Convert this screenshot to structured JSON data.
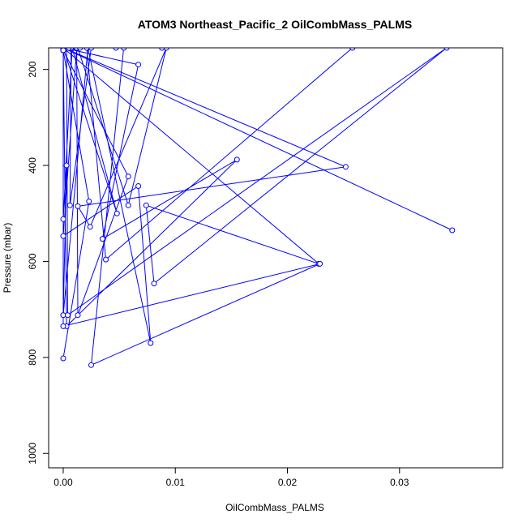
{
  "chart_data": {
    "type": "line",
    "title": "ATOM3 Northeast_Pacific_2 OilCombMass_PALMS",
    "xlabel": "OilCombMass_PALMS",
    "ylabel": "Pressure (mbar)",
    "xlim": [
      -0.0013,
      0.0392
    ],
    "ylim": [
      1030,
      155
    ],
    "y_reversed": true,
    "grid": false,
    "x_ticks": [
      0.0,
      0.01,
      0.02,
      0.03
    ],
    "x_tick_labels": [
      "0.00",
      "0.01",
      "0.02",
      "0.03"
    ],
    "y_ticks": [
      200,
      400,
      600,
      800,
      1000
    ],
    "y_tick_labels": [
      "200",
      "400",
      "600",
      "800",
      "1000"
    ],
    "color": "#0000ff",
    "series": [
      {
        "x": [
          0.0,
          0.0023,
          0.0,
          0.0,
          0.0003,
          0.0,
          0.0008,
          0.0048,
          0.0,
          0.0252,
          0.0013,
          0.0024,
          0.0092,
          0.0058,
          0.0013,
          0.0,
          0.0058,
          0.0013,
          0.0012,
          0.0,
          0.0067,
          0.0078,
          0.0022,
          0.0,
          0.0,
          0.0003,
          0.0155,
          0.0035,
          0.0067,
          0.0,
          0.0007,
          0.0006,
          0.0025,
          0.0047,
          0.0,
          0.0347,
          0.0,
          0.0228,
          0.0074,
          0.0081,
          0.0342,
          0.0004,
          0.0003,
          0.0088,
          0.0258,
          0.0038,
          0.0021,
          0.0,
          0.0005,
          0.0015,
          0.0054,
          0.0025,
          0.0229,
          0.0,
          0.0
        ],
        "y": [
          802,
          475,
          160,
          712,
          400,
          512,
          155,
          500,
          155,
          403,
          485,
          528,
          155,
          483,
          155,
          160,
          423,
          712,
          155,
          547,
          443,
          770,
          155,
          712,
          160,
          735,
          388,
          553,
          190,
          155,
          155,
          483,
          155,
          155,
          155,
          535,
          155,
          605,
          483,
          646,
          155,
          712,
          155,
          155,
          155,
          596,
          155,
          155,
          155,
          155,
          155,
          816,
          605,
          735,
          160
        ]
      }
    ]
  }
}
